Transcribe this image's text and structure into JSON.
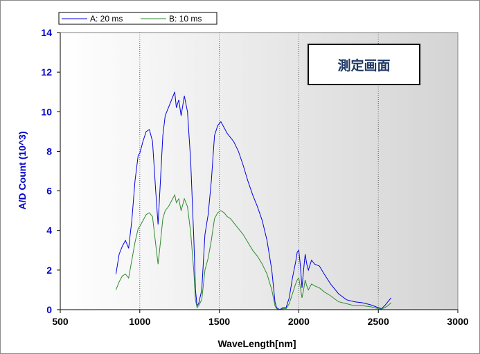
{
  "overlay_label": "測定画面",
  "colors": {
    "series_a": "#0000e0",
    "series_b": "#2e8b2e",
    "axis_text_y": "#0000cc",
    "axis_text_x": "#000000",
    "plot_bg_left": "#ffffff",
    "plot_bg_right": "#d4d4d4"
  },
  "chart_data": {
    "type": "line",
    "title": "",
    "xlabel": "WaveLength[nm]",
    "ylabel": "A/D Count (10^3)",
    "xlim": [
      500,
      3000
    ],
    "ylim": [
      0,
      14
    ],
    "xticks": [
      500,
      1000,
      1500,
      2000,
      2500,
      3000
    ],
    "yticks": [
      0,
      2,
      4,
      6,
      8,
      10,
      12,
      14
    ],
    "xtick_labels": [
      "500",
      "1000",
      "1500",
      "2000",
      "2500",
      "3000"
    ],
    "ytick_labels": [
      "0",
      "2",
      "4",
      "6",
      "8",
      "10",
      "12",
      "14"
    ],
    "grid": "vertical-dotted",
    "legend_position": "top-left",
    "series": [
      {
        "name": "A: 20 ms",
        "x": [
          850,
          870,
          890,
          910,
          930,
          950,
          970,
          990,
          1000,
          1020,
          1040,
          1060,
          1080,
          1100,
          1115,
          1130,
          1145,
          1160,
          1180,
          1200,
          1220,
          1230,
          1245,
          1260,
          1280,
          1300,
          1320,
          1340,
          1350,
          1360,
          1370,
          1390,
          1410,
          1430,
          1450,
          1470,
          1490,
          1510,
          1530,
          1550,
          1570,
          1590,
          1620,
          1650,
          1680,
          1710,
          1740,
          1770,
          1800,
          1830,
          1850,
          1860,
          1880,
          1900,
          1920,
          1940,
          1960,
          1980,
          1990,
          2000,
          2010,
          2020,
          2030,
          2040,
          2050,
          2060,
          2080,
          2100,
          2130,
          2160,
          2200,
          2250,
          2300,
          2350,
          2400,
          2450,
          2500,
          2520,
          2540,
          2560,
          2580
        ],
        "y": [
          1.8,
          2.8,
          3.2,
          3.5,
          3.1,
          4.5,
          6.5,
          7.8,
          7.9,
          8.5,
          9.0,
          9.1,
          8.5,
          6.0,
          4.3,
          6.5,
          8.8,
          9.8,
          10.2,
          10.6,
          11.0,
          10.2,
          10.6,
          9.8,
          10.8,
          10.0,
          7.5,
          3.5,
          1.0,
          0.2,
          0.3,
          1.0,
          3.8,
          4.8,
          6.5,
          8.8,
          9.3,
          9.5,
          9.2,
          8.9,
          8.7,
          8.5,
          8.0,
          7.3,
          6.5,
          5.8,
          5.2,
          4.5,
          3.5,
          2.0,
          0.4,
          0.1,
          0.0,
          0.1,
          0.1,
          0.6,
          1.6,
          2.4,
          2.9,
          3.0,
          2.2,
          1.1,
          2.0,
          2.8,
          2.3,
          2.0,
          2.5,
          2.3,
          2.2,
          1.8,
          1.3,
          0.8,
          0.5,
          0.4,
          0.35,
          0.25,
          0.1,
          0.05,
          0.2,
          0.4,
          0.6
        ]
      },
      {
        "name": "B: 10 ms",
        "x": [
          850,
          870,
          890,
          910,
          930,
          950,
          970,
          990,
          1000,
          1020,
          1040,
          1060,
          1080,
          1100,
          1115,
          1130,
          1145,
          1160,
          1180,
          1200,
          1220,
          1230,
          1245,
          1260,
          1280,
          1300,
          1320,
          1340,
          1350,
          1360,
          1370,
          1390,
          1410,
          1430,
          1450,
          1470,
          1490,
          1510,
          1530,
          1550,
          1570,
          1590,
          1620,
          1650,
          1680,
          1710,
          1740,
          1770,
          1800,
          1830,
          1850,
          1860,
          1880,
          1900,
          1920,
          1940,
          1960,
          1980,
          1990,
          2000,
          2010,
          2020,
          2030,
          2040,
          2050,
          2060,
          2080,
          2100,
          2130,
          2160,
          2200,
          2250,
          2300,
          2350,
          2400,
          2450,
          2500,
          2520,
          2540,
          2560,
          2580
        ],
        "y": [
          1.0,
          1.4,
          1.7,
          1.8,
          1.6,
          2.5,
          3.4,
          4.1,
          4.2,
          4.5,
          4.8,
          4.9,
          4.7,
          3.3,
          2.3,
          3.4,
          4.6,
          5.0,
          5.2,
          5.5,
          5.8,
          5.4,
          5.6,
          5.0,
          5.6,
          5.2,
          3.9,
          1.9,
          0.5,
          0.1,
          0.2,
          0.5,
          2.0,
          2.6,
          3.5,
          4.6,
          4.9,
          5.0,
          4.9,
          4.7,
          4.6,
          4.4,
          4.1,
          3.8,
          3.4,
          3.0,
          2.7,
          2.3,
          1.8,
          1.0,
          0.2,
          0.05,
          0.0,
          0.05,
          0.05,
          0.3,
          0.8,
          1.3,
          1.5,
          1.6,
          1.1,
          0.6,
          1.0,
          1.5,
          1.2,
          1.0,
          1.3,
          1.2,
          1.1,
          0.9,
          0.7,
          0.4,
          0.3,
          0.2,
          0.2,
          0.15,
          0.05,
          0.03,
          0.1,
          0.2,
          0.35
        ]
      }
    ]
  }
}
